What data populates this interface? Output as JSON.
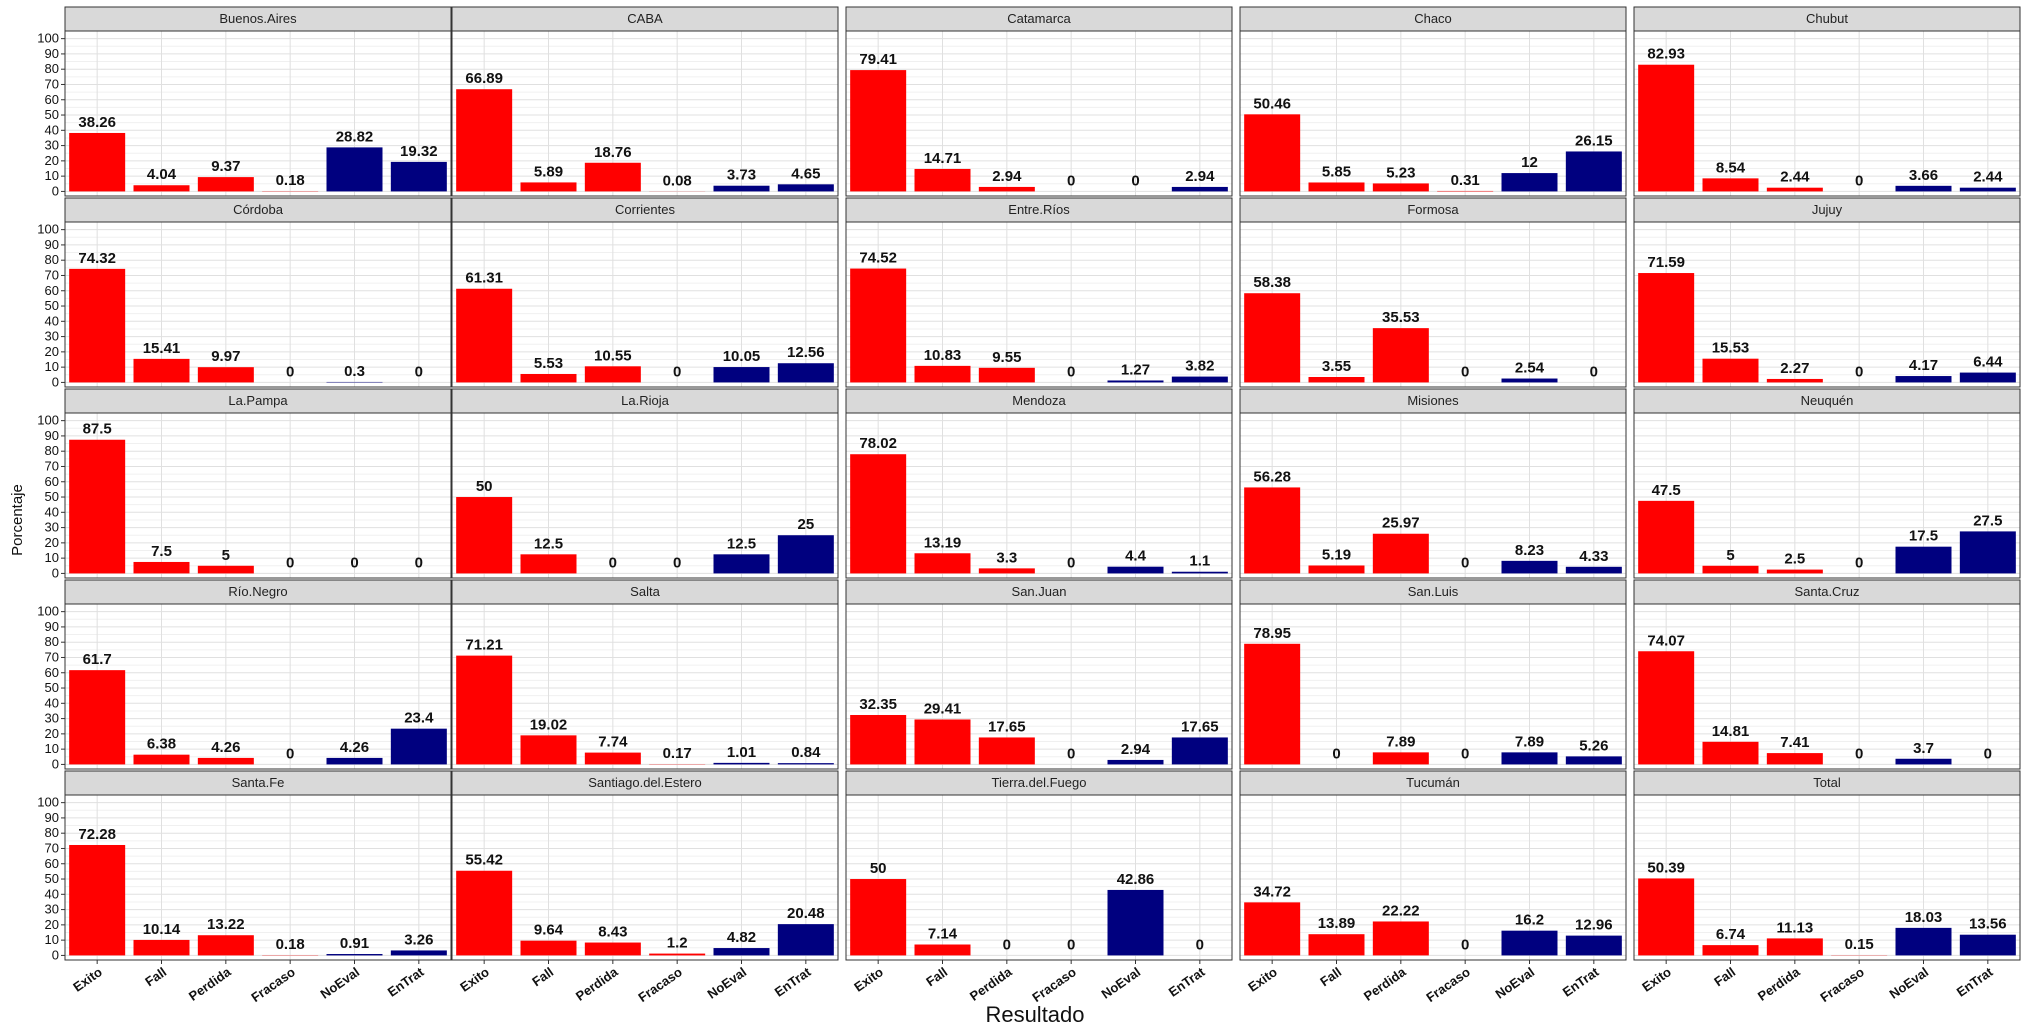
{
  "chart_data": {
    "type": "bar",
    "xlabel": "Resultado",
    "ylabel": "Porcentaje",
    "ylim": [
      0,
      100
    ],
    "yticks": [
      0,
      10,
      20,
      30,
      40,
      50,
      60,
      70,
      80,
      90,
      100
    ],
    "categories": [
      "Exito",
      "Fall",
      "Perdida",
      "Fracaso",
      "NoEval",
      "EnTrat"
    ],
    "category_colors": [
      "#ff0000",
      "#ff0000",
      "#ff0000",
      "#ff0000",
      "#00007f",
      "#00007f"
    ],
    "grid": true,
    "facets": [
      {
        "name": "Buenos.Aires",
        "values": [
          38.26,
          4.04,
          9.37,
          0.18,
          28.82,
          19.32
        ]
      },
      {
        "name": "CABA",
        "values": [
          66.89,
          5.89,
          18.76,
          0.08,
          3.73,
          4.65
        ]
      },
      {
        "name": "Catamarca",
        "values": [
          79.41,
          14.71,
          2.94,
          0,
          0,
          2.94
        ]
      },
      {
        "name": "Chaco",
        "values": [
          50.46,
          5.85,
          5.23,
          0.31,
          12,
          26.15
        ]
      },
      {
        "name": "Chubut",
        "values": [
          82.93,
          8.54,
          2.44,
          0,
          3.66,
          2.44
        ]
      },
      {
        "name": "Córdoba",
        "values": [
          74.32,
          15.41,
          9.97,
          0,
          0.3,
          0
        ]
      },
      {
        "name": "Corrientes",
        "values": [
          61.31,
          5.53,
          10.55,
          0,
          10.05,
          12.56
        ]
      },
      {
        "name": "Entre.Ríos",
        "values": [
          74.52,
          10.83,
          9.55,
          0,
          1.27,
          3.82
        ]
      },
      {
        "name": "Formosa",
        "values": [
          58.38,
          3.55,
          35.53,
          0,
          2.54,
          0
        ]
      },
      {
        "name": "Jujuy",
        "values": [
          71.59,
          15.53,
          2.27,
          0,
          4.17,
          6.44
        ]
      },
      {
        "name": "La.Pampa",
        "values": [
          87.5,
          7.5,
          5,
          0,
          0,
          0
        ]
      },
      {
        "name": "La.Rioja",
        "values": [
          50,
          12.5,
          0,
          0,
          12.5,
          25
        ]
      },
      {
        "name": "Mendoza",
        "values": [
          78.02,
          13.19,
          3.3,
          0,
          4.4,
          1.1
        ]
      },
      {
        "name": "Misiones",
        "values": [
          56.28,
          5.19,
          25.97,
          0,
          8.23,
          4.33
        ]
      },
      {
        "name": "Neuquén",
        "values": [
          47.5,
          5,
          2.5,
          0,
          17.5,
          27.5
        ]
      },
      {
        "name": "Río.Negro",
        "values": [
          61.7,
          6.38,
          4.26,
          0,
          4.26,
          23.4
        ]
      },
      {
        "name": "Salta",
        "values": [
          71.21,
          19.02,
          7.74,
          0.17,
          1.01,
          0.84
        ]
      },
      {
        "name": "San.Juan",
        "values": [
          32.35,
          29.41,
          17.65,
          0,
          2.94,
          17.65
        ]
      },
      {
        "name": "San.Luis",
        "values": [
          78.95,
          0,
          7.89,
          0,
          7.89,
          5.26
        ]
      },
      {
        "name": "Santa.Cruz",
        "values": [
          74.07,
          14.81,
          7.41,
          0,
          3.7,
          0
        ]
      },
      {
        "name": "Santa.Fe",
        "values": [
          72.28,
          10.14,
          13.22,
          0.18,
          0.91,
          3.26
        ]
      },
      {
        "name": "Santiago.del.Estero",
        "values": [
          55.42,
          9.64,
          8.43,
          1.2,
          4.82,
          20.48
        ]
      },
      {
        "name": "Tierra.del.Fuego",
        "values": [
          50,
          7.14,
          0,
          0,
          42.86,
          0
        ]
      },
      {
        "name": "Tucumán",
        "values": [
          34.72,
          13.89,
          22.22,
          0,
          16.2,
          12.96
        ]
      },
      {
        "name": "Total",
        "values": [
          50.39,
          6.74,
          11.13,
          0.15,
          18.03,
          13.56
        ]
      }
    ]
  }
}
